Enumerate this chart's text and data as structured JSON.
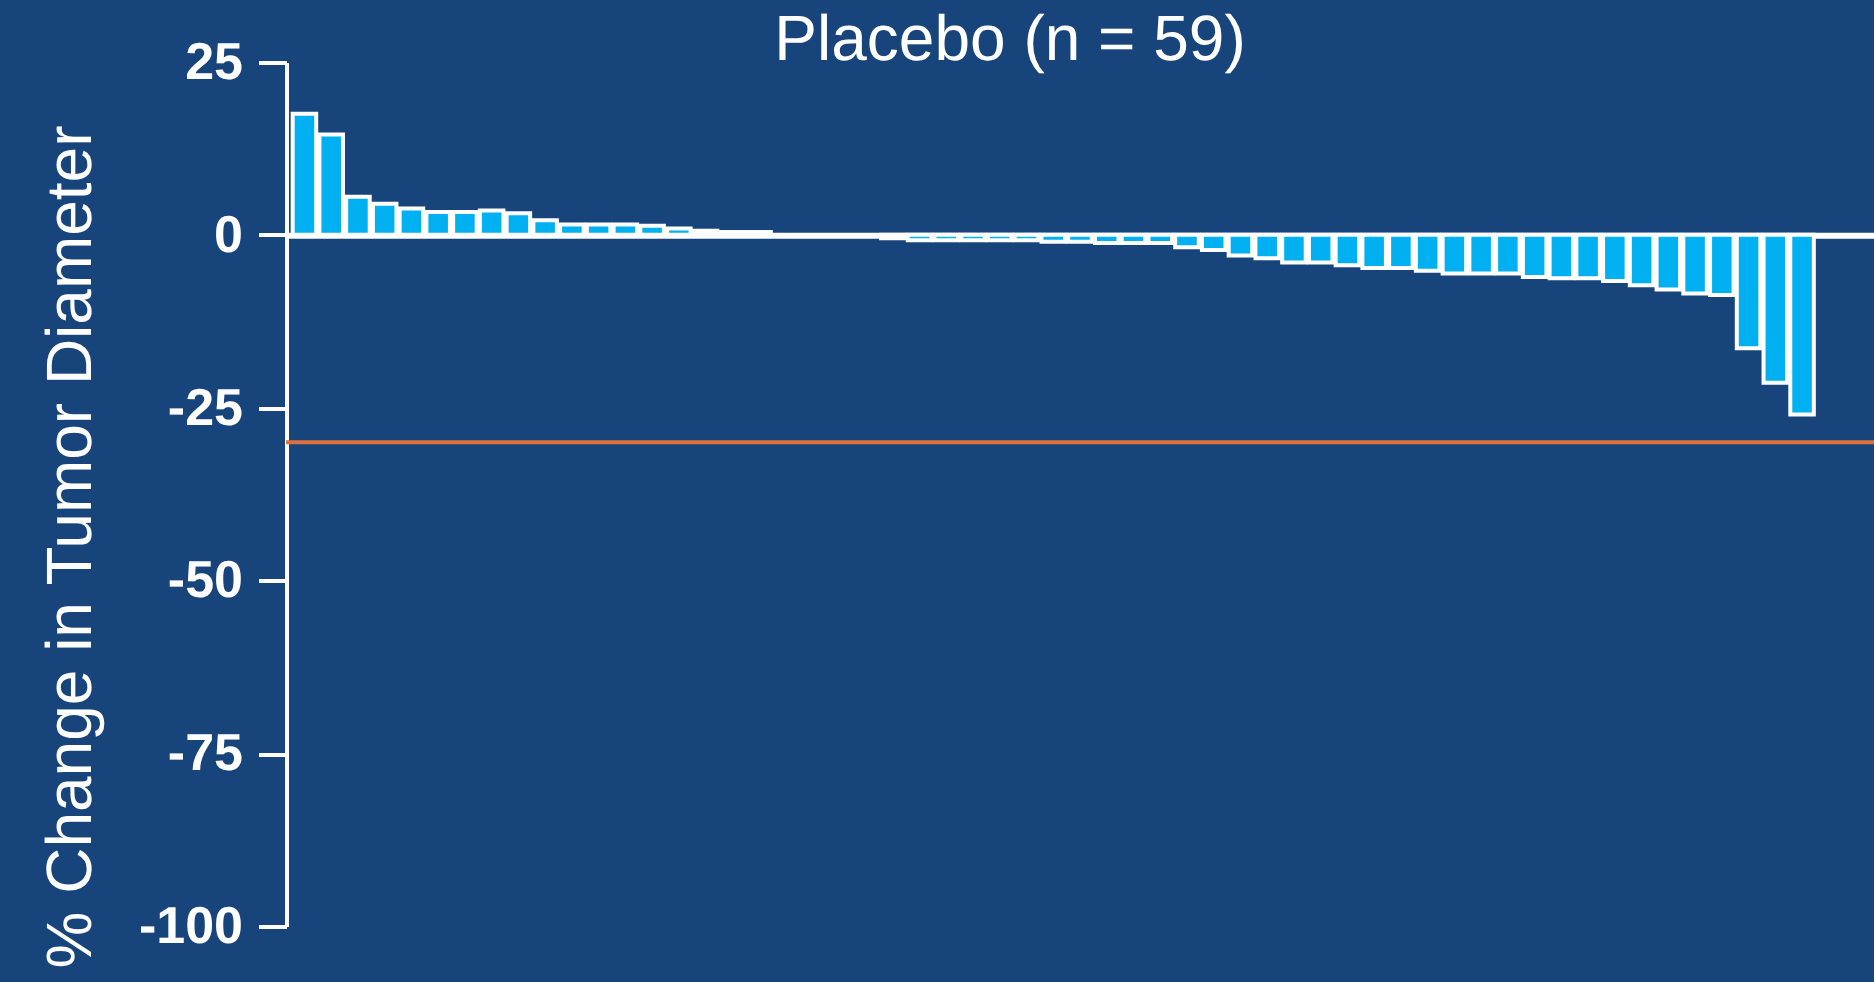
{
  "chart_data": {
    "type": "bar",
    "title": "Placebo (n = 59)",
    "ylabel": "% Change in Tumor Diameter",
    "categories": [
      null,
      null,
      null,
      null,
      null,
      null,
      null,
      null,
      null,
      null,
      null,
      null,
      null,
      null,
      null,
      null,
      null,
      null,
      null,
      null,
      null,
      null,
      null,
      null,
      null,
      null,
      null,
      null,
      null,
      null,
      null,
      null,
      null,
      null,
      null,
      null,
      null,
      null,
      null,
      null,
      null,
      null,
      null,
      null,
      null,
      null,
      null,
      null,
      null,
      null,
      null,
      null,
      null,
      null,
      null,
      null,
      null,
      null,
      null
    ],
    "values": [
      17.5,
      14.5,
      5.5,
      4.5,
      3.8,
      3.3,
      3.3,
      3.5,
      3.1,
      2.1,
      1.5,
      1.5,
      1.5,
      1.3,
      0.9,
      0.6,
      0.4,
      0.4,
      null,
      null,
      null,
      null,
      -0.5,
      -0.8,
      -0.8,
      -0.8,
      -0.8,
      -0.8,
      -1,
      -1,
      -1.2,
      -1.2,
      -1.2,
      -1.8,
      -2.2,
      -3,
      -3.4,
      -4,
      -4,
      -4.4,
      -4.8,
      -4.8,
      -5.2,
      -5.6,
      -5.6,
      -5.6,
      -6.1,
      -6.3,
      -6.3,
      -6.7,
      -7.3,
      -7.9,
      -8.5,
      -8.7,
      -16.4,
      -21.4,
      -26,
      null,
      null
    ],
    "color": "#00b0f0",
    "ylim": [
      -100,
      25
    ],
    "yticks": [
      -100,
      -75,
      -50,
      -25,
      0,
      25
    ],
    "ref_lines": [
      {
        "axis": "y",
        "value": -30,
        "color": "#e0703c"
      }
    ],
    "tick_labels": "y"
  }
}
